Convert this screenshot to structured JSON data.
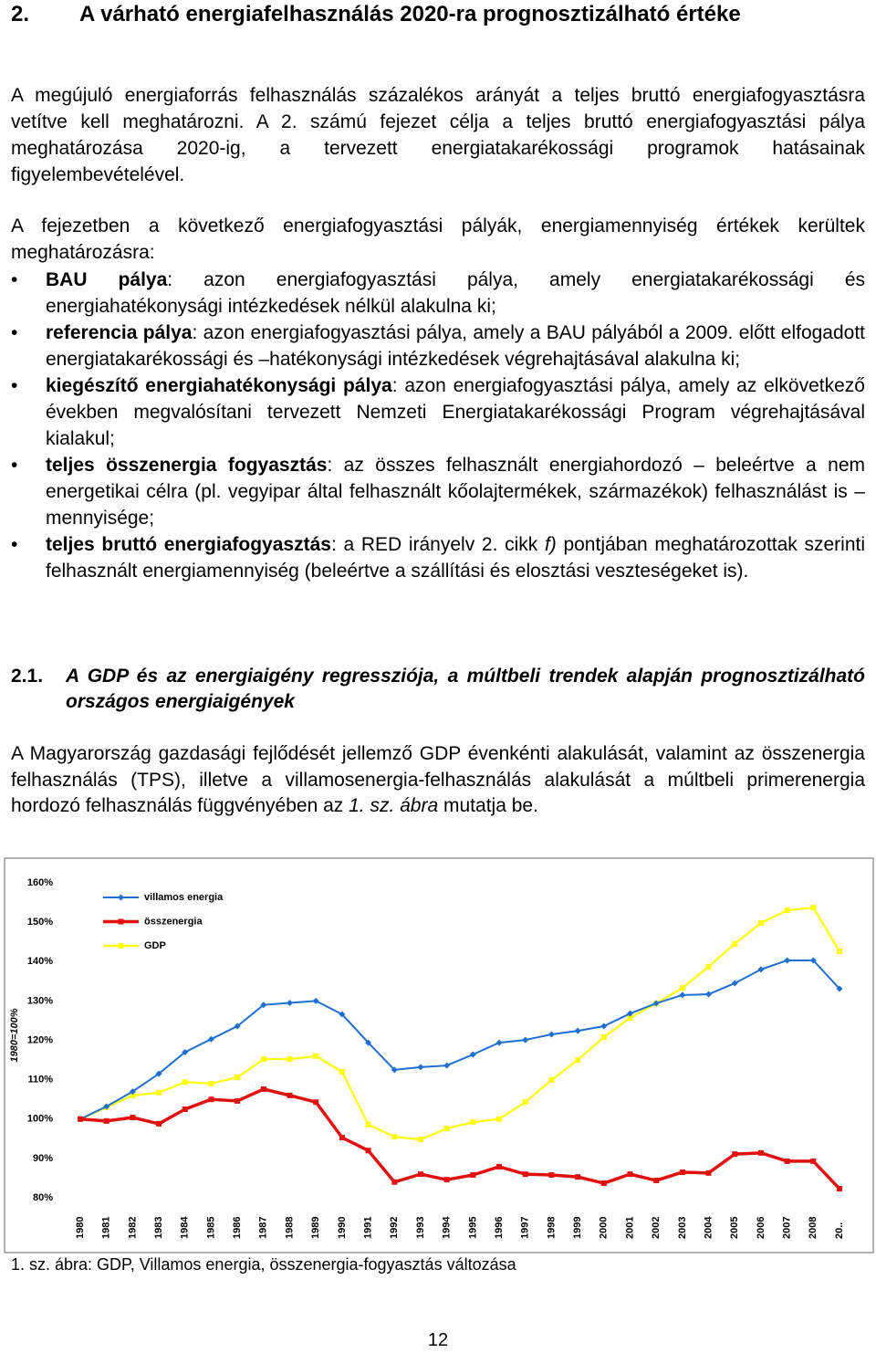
{
  "heading": {
    "number": "2.",
    "title": "A várható energiafelhasználás 2020-ra prognosztizálható értéke"
  },
  "paragraphs": [
    "A megújuló energiaforrás felhasználás százalékos arányát a teljes bruttó energiafogyasztásra vetítve kell meghatározni. A 2. számú fejezet célja a teljes bruttó energiafogyasztási pálya meghatározása 2020-ig, a tervezett energiatakarékossági programok hatásainak figyelembevételével.",
    "A fejezetben a következő energiafogyasztási pályák, energiamennyiség értékek kerültek meghatározásra:"
  ],
  "bullets": [
    {
      "term": "BAU pálya",
      "text": ": azon energiafogyasztási pálya, amely energiatakarékossági és energiahatékonysági intézkedések nélkül alakulna ki;"
    },
    {
      "term": "referencia pálya",
      "text": ": azon energiafogyasztási pálya, amely a BAU pályából a 2009. előtt elfogadott energiatakarékossági és –hatékonysági intézkedések végrehajtásával alakulna ki;"
    },
    {
      "term": "kiegészítő energiahatékonysági pálya",
      "text": ": azon energiafogyasztási pálya, amely az elkövetkező években megvalósítani tervezett Nemzeti Energiatakarékossági Program végrehajtásával kialakul;"
    },
    {
      "term": "teljes összenergia fogyasztás",
      "text": ": az összes felhasznált energiahordozó – beleértve a nem energetikai célra (pl. vegyipar által felhasznált kőolajtermékek, származékok) felhasználást is – mennyisége;"
    },
    {
      "term": "teljes bruttó energiafogyasztás",
      "text": ": a RED irányelv 2. cikk ",
      "italic": "f)",
      "rest": " pontjában meghatározottak szerinti felhasznált energiamennyiség (beleértve a szállítási és elosztási veszteségeket is)."
    }
  ],
  "subheading": {
    "number": "2.1.",
    "title": "A GDP és az energiaigény regressziója, a múltbeli trendek alapján prognosztizálható országos energiaigények"
  },
  "paragraph3": {
    "text": "A Magyarország gazdasági fejlődését jellemző GDP évenkénti alakulását, valamint az összenergia felhasználás (TPS), illetve a villamosenergia-felhasználás alakulását a múltbeli primerenergia hordozó felhasználás függvényében az ",
    "italic": "1. sz. ábra",
    "rest": " mutatja be."
  },
  "chart_data": {
    "type": "line",
    "ylabel": "1980=100%",
    "categories": [
      "1980",
      "1981",
      "1982",
      "1983",
      "1984",
      "1985",
      "1986",
      "1987",
      "1988",
      "1989",
      "1990",
      "1991",
      "1992",
      "1993",
      "1994",
      "1995",
      "1996",
      "1997",
      "1998",
      "1999",
      "2000",
      "2001",
      "2002",
      "2003",
      "2004",
      "2005",
      "2006",
      "2007",
      "2008",
      "20.."
    ],
    "ylim": [
      80,
      160
    ],
    "yticks": [
      {
        "value": 80,
        "label": "80%"
      },
      {
        "value": 90,
        "label": "90%"
      },
      {
        "value": 100,
        "label": "100%"
      },
      {
        "value": 110,
        "label": "110%"
      },
      {
        "value": 120,
        "label": "120%"
      },
      {
        "value": 130,
        "label": "130%"
      },
      {
        "value": 140,
        "label": "140%"
      },
      {
        "value": 150,
        "label": "150%"
      },
      {
        "value": 160,
        "label": "160%"
      }
    ],
    "grid": false,
    "legend": "upper left",
    "series": [
      {
        "name": "villamos energia",
        "color": "#1f6fd1",
        "marker": "diamond",
        "values": [
          100,
          103.2,
          107,
          111.5,
          117,
          120.3,
          123.6,
          129,
          129.5,
          130,
          126.6,
          119.4,
          112.5,
          113.2,
          113.6,
          116.4,
          119.4,
          120.1,
          121.5,
          122.4,
          123.6,
          126.8,
          129.4,
          131.5,
          131.7,
          134.5,
          138,
          140.3,
          140.3,
          133.1
        ]
      },
      {
        "name": "összenergia",
        "color": "#e31010",
        "marker": "square",
        "values": [
          100,
          99.5,
          100.4,
          98.8,
          102.5,
          105,
          104.6,
          107.6,
          106,
          104.3,
          95.3,
          92,
          84,
          86,
          84.6,
          85.8,
          87.9,
          86,
          85.8,
          85.3,
          83.7,
          86,
          84.4,
          86.5,
          86.3,
          91.1,
          91.4,
          89.3,
          89.3,
          82.3
        ]
      },
      {
        "name": "GDP",
        "color": "#ffff00",
        "marker": "square",
        "values": [
          100,
          103,
          106,
          106.7,
          109.4,
          109,
          110.6,
          115.2,
          115.2,
          116,
          112,
          98.6,
          95.5,
          94.8,
          97.6,
          99.2,
          100,
          104.3,
          109.9,
          115,
          120.8,
          125.7,
          129.4,
          133.3,
          138.7,
          144.5,
          149.8,
          153,
          153.7,
          142.6
        ]
      }
    ]
  },
  "caption": "1. sz. ábra: GDP, Villamos energia, összenergia-fogyasztás változása",
  "page_number": "12"
}
